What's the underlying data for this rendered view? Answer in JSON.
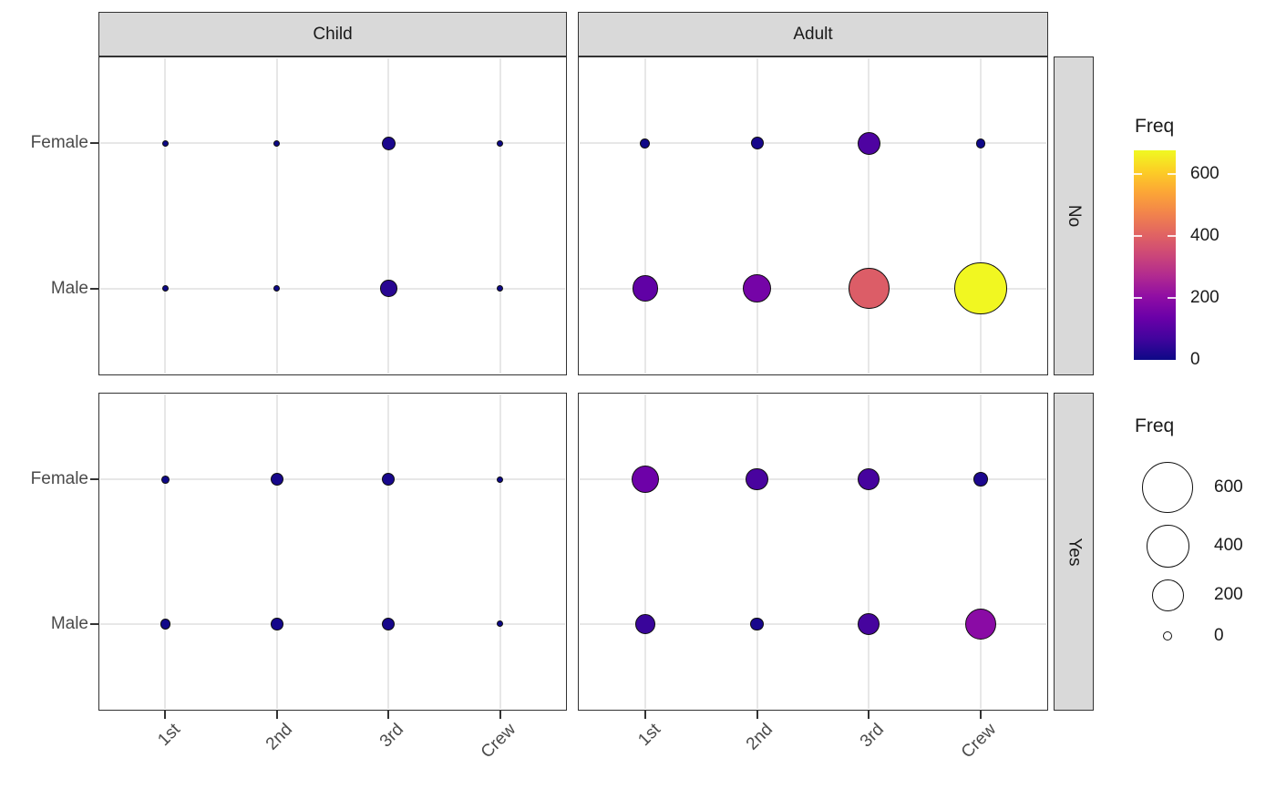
{
  "chart_data": {
    "type": "scatter",
    "description": "Faceted bubble chart of Titanic passenger counts: bubble size and plasma color encode Freq, x = passenger class, y = sex, facet columns = age, facet rows = survived",
    "x_categories": [
      "1st",
      "2nd",
      "3rd",
      "Crew"
    ],
    "y_categories": [
      "Female",
      "Male"
    ],
    "facet_columns": [
      "Child",
      "Adult"
    ],
    "facet_rows": [
      "No",
      "Yes"
    ],
    "facets": [
      {
        "col": "Child",
        "row": "No",
        "Female": [
          0,
          0,
          17,
          0
        ],
        "Male": [
          0,
          0,
          35,
          0
        ]
      },
      {
        "col": "Adult",
        "row": "No",
        "Female": [
          4,
          13,
          89,
          3
        ],
        "Male": [
          118,
          154,
          387,
          670
        ]
      },
      {
        "col": "Child",
        "row": "Yes",
        "Female": [
          1,
          13,
          14,
          0
        ],
        "Male": [
          5,
          11,
          13,
          0
        ]
      },
      {
        "col": "Adult",
        "row": "Yes",
        "Female": [
          140,
          80,
          76,
          20
        ],
        "Male": [
          57,
          14,
          75,
          192
        ]
      }
    ],
    "color_legend": {
      "title": "Freq",
      "tick_values": [
        600,
        400,
        200,
        0
      ],
      "tick_labels": [
        "600",
        "400",
        "200",
        "0"
      ],
      "domain": [
        0,
        676
      ],
      "palette": "plasma"
    },
    "size_legend": {
      "title": "Freq",
      "values": [
        600,
        400,
        200,
        0
      ],
      "labels": [
        "600",
        "400",
        "200",
        "0"
      ]
    },
    "colors": {
      "plasma_stops": [
        "#0d0887",
        "#41049d",
        "#6a00a8",
        "#8f0da4",
        "#b12a90",
        "#cc4778",
        "#e16462",
        "#f2844b",
        "#fca636",
        "#fcce25",
        "#f0f921"
      ],
      "strip_background": "#d9d9d9",
      "panel_border": "#333333",
      "gridline": "#e7e7e7",
      "axis_text": "#4a4a4a",
      "label_text": "#1a1a1a"
    }
  }
}
